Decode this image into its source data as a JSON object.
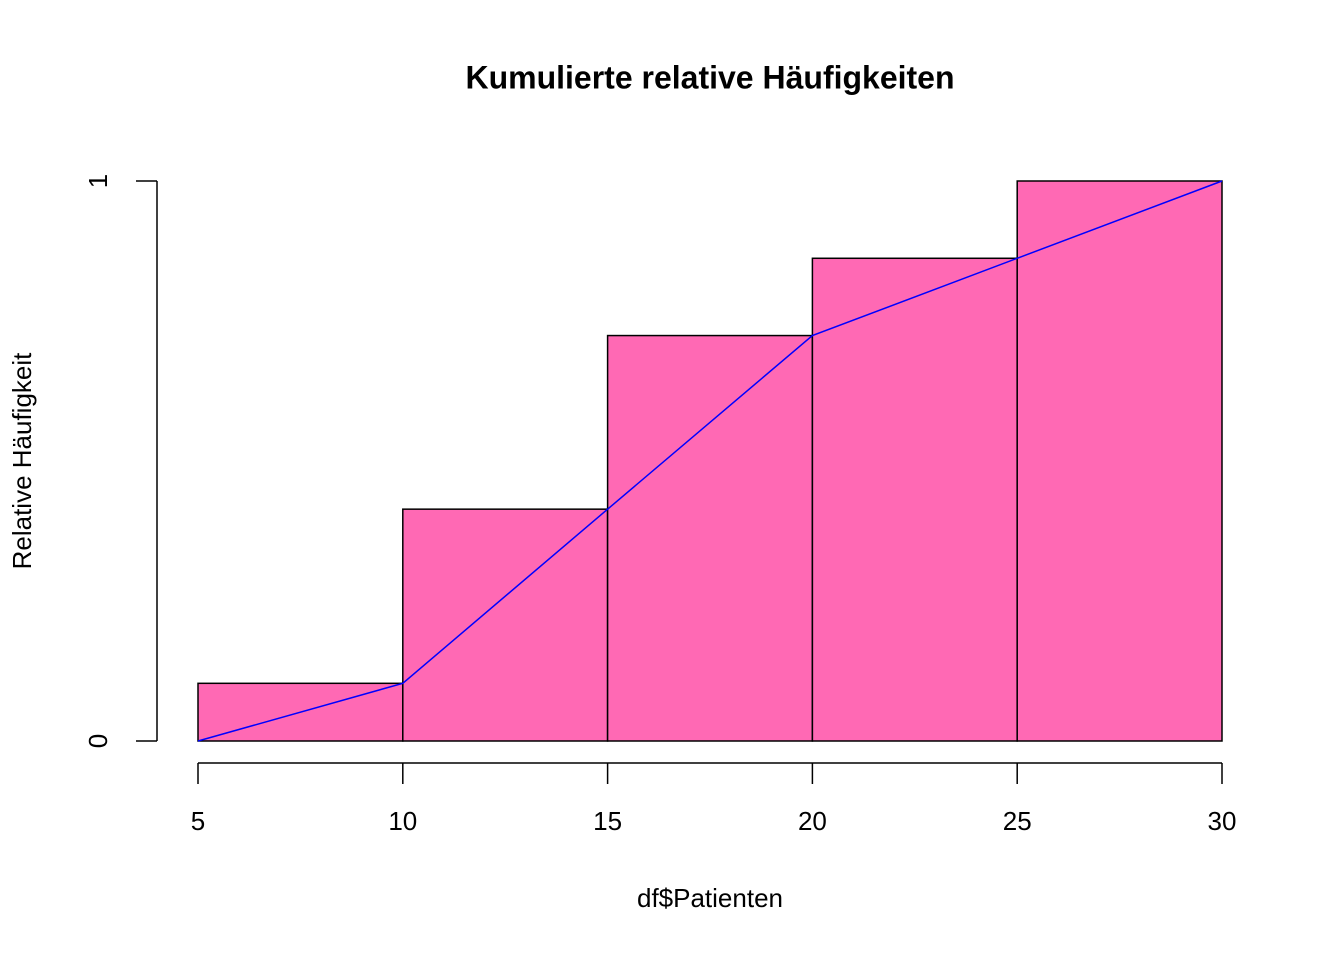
{
  "chart_data": {
    "type": "histogram",
    "title": "Kumulierte relative Häufigkeiten",
    "x_label": "df$Patienten",
    "y_label": "Relative Häufigkeit",
    "bins": [
      5,
      10,
      15,
      20,
      25,
      30
    ],
    "values": [
      0.103,
      0.414,
      0.724,
      0.862,
      1
    ],
    "color": "#ff69b4",
    "line": {
      "x": [
        5,
        10,
        15,
        20,
        25,
        30
      ],
      "values": [
        0,
        0.103,
        0.414,
        0.724,
        0.862,
        1
      ],
      "color": "#0000ff"
    },
    "xlim": [
      5,
      30
    ],
    "xticks": [
      5,
      10,
      15,
      20,
      25,
      30
    ],
    "ylim": [
      0,
      1
    ],
    "yticks": [
      0,
      1
    ]
  }
}
